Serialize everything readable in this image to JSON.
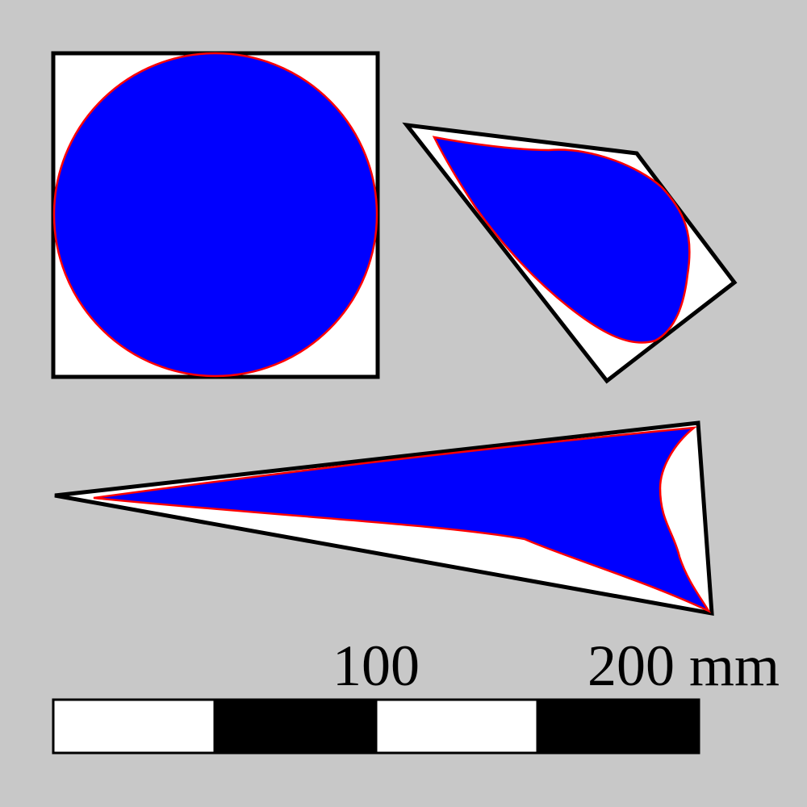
{
  "colors": {
    "background": "#c8c8c8",
    "container_fill": "#ffffff",
    "container_stroke": "#000000",
    "shape_fill": "#0000ff",
    "shape_stroke": "#ff0000",
    "scale_dark": "#000000",
    "scale_light": "#ffffff"
  },
  "figures": [
    {
      "name": "square-with-inscribed-circle",
      "container": "square",
      "inner_shape": "circle"
    },
    {
      "name": "quadrilateral-with-inscribed-blob",
      "container": "quadrilateral",
      "inner_shape": "rounded-teardrop"
    },
    {
      "name": "triangle-with-inscribed-blob",
      "container": "triangle",
      "inner_shape": "curved-triangle"
    }
  ],
  "scale_bar": {
    "segments": 4,
    "pattern": [
      "white",
      "black",
      "white",
      "black"
    ],
    "labels": {
      "mid": "100",
      "end": "200 mm"
    }
  }
}
